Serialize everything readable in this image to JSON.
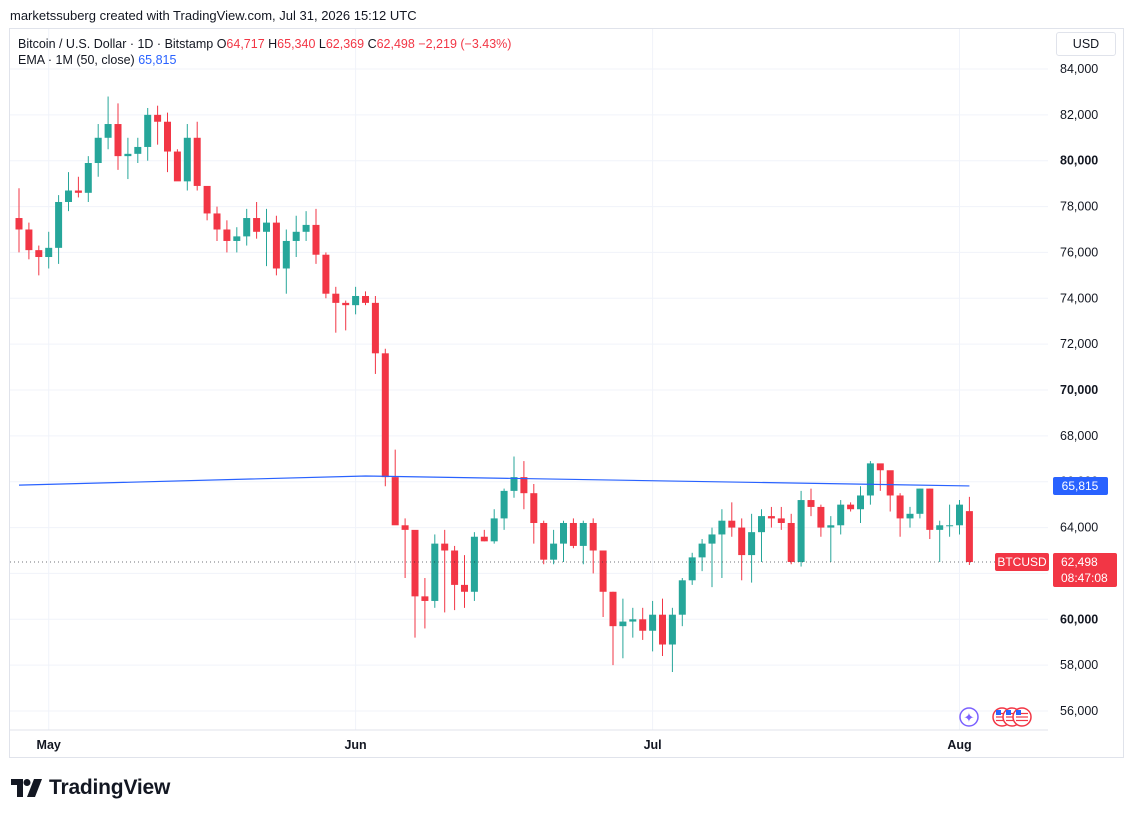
{
  "header": {
    "credit": "marketssuberg created with TradingView.com, Jul 31, 2026 15:12 UTC"
  },
  "legend": {
    "symbol": "Bitcoin / U.S. Dollar · 1D · Bitstamp",
    "o_label": "O",
    "o_value": "64,717",
    "h_label": "H",
    "h_value": "65,340",
    "l_label": "L",
    "l_value": "62,369",
    "c_label": "C",
    "c_value": "62,498",
    "change": "−2,219 (−3.43%)",
    "ema_label": "EMA · 1M (50, close)",
    "ema_value": "65,815"
  },
  "currency_button": "USD",
  "brand": {
    "name": "TradingView",
    "logo_icon": "tradingview-logo-icon"
  },
  "colors": {
    "up": "#26a69a",
    "down": "#f23645",
    "ema": "#2962ff",
    "grid": "#f0f3fa",
    "axis_text": "#131722"
  },
  "chart_data": {
    "type": "candlestick",
    "title": "Bitcoin / U.S. Dollar · 1D · Bitstamp",
    "ylim": [
      55000,
      85500
    ],
    "y_ticks": [
      "84,000",
      "82,000",
      "80,000",
      "78,000",
      "76,000",
      "74,000",
      "72,000",
      "70,000",
      "68,000",
      "66,000",
      "64,000",
      "62,000",
      "60,000",
      "58,000",
      "56,000"
    ],
    "y_tick_values": [
      84000,
      82000,
      80000,
      78000,
      76000,
      74000,
      72000,
      70000,
      68000,
      66000,
      64000,
      62000,
      60000,
      58000,
      56000
    ],
    "bold_ticks": [
      80000,
      70000,
      60000
    ],
    "x_tick_labels": [
      {
        "label": "May",
        "day": 3
      },
      {
        "label": "Jun",
        "day": 34
      },
      {
        "label": "Jul",
        "day": 64
      },
      {
        "label": "Aug",
        "day": 95
      }
    ],
    "candles_ohlc": [
      [
        77500,
        78800,
        76000,
        77000
      ],
      [
        77000,
        77300,
        75700,
        76100
      ],
      [
        76100,
        76300,
        75000,
        75800
      ],
      [
        75800,
        76900,
        75300,
        76200
      ],
      [
        76200,
        78500,
        75500,
        78200
      ],
      [
        78200,
        79500,
        77800,
        78700
      ],
      [
        78700,
        79300,
        78400,
        78600
      ],
      [
        78600,
        80200,
        78200,
        79900
      ],
      [
        79900,
        81600,
        79300,
        81000
      ],
      [
        81000,
        82800,
        80500,
        81600
      ],
      [
        81600,
        82500,
        79600,
        80200
      ],
      [
        80200,
        81000,
        79200,
        80300
      ],
      [
        80300,
        81000,
        79900,
        80600
      ],
      [
        80600,
        82300,
        80000,
        82000
      ],
      [
        82000,
        82400,
        80700,
        81700
      ],
      [
        81700,
        82100,
        79500,
        80400
      ],
      [
        80400,
        80500,
        79300,
        79100
      ],
      [
        79100,
        81600,
        78700,
        81000
      ],
      [
        81000,
        81700,
        78700,
        78900
      ],
      [
        78900,
        78800,
        77400,
        77700
      ],
      [
        77700,
        78000,
        76500,
        77000
      ],
      [
        77000,
        77400,
        76000,
        76500
      ],
      [
        76500,
        77100,
        76000,
        76700
      ],
      [
        76700,
        77900,
        76300,
        77500
      ],
      [
        77500,
        78200,
        76600,
        76900
      ],
      [
        76900,
        77900,
        75400,
        77300
      ],
      [
        77300,
        77600,
        75000,
        75300
      ],
      [
        75300,
        77000,
        74200,
        76500
      ],
      [
        76500,
        77600,
        75800,
        76900
      ],
      [
        76900,
        77800,
        76500,
        77200
      ],
      [
        77200,
        77900,
        75500,
        75900
      ],
      [
        75900,
        76000,
        74000,
        74200
      ],
      [
        74200,
        74500,
        72500,
        73800
      ],
      [
        73800,
        73900,
        72600,
        73700
      ],
      [
        73700,
        74500,
        73300,
        74100
      ],
      [
        74100,
        74300,
        73700,
        73800
      ],
      [
        73800,
        74100,
        70700,
        71600
      ],
      [
        71600,
        71800,
        65800,
        66200
      ],
      [
        66200,
        67400,
        65600,
        64100
      ],
      [
        64100,
        64400,
        61800,
        63900
      ],
      [
        63900,
        63800,
        59200,
        61000
      ],
      [
        61000,
        61800,
        59600,
        60800
      ],
      [
        60800,
        63700,
        60500,
        63300
      ],
      [
        63300,
        63900,
        60300,
        63000
      ],
      [
        63000,
        63200,
        60400,
        61500
      ],
      [
        61500,
        62800,
        60500,
        61200
      ],
      [
        61200,
        63800,
        60800,
        63600
      ],
      [
        63600,
        63900,
        63400,
        63400
      ],
      [
        63400,
        64800,
        63300,
        64400
      ],
      [
        64400,
        65700,
        63900,
        65600
      ],
      [
        65600,
        67100,
        65300,
        66200
      ],
      [
        66200,
        66900,
        64800,
        65500
      ],
      [
        65500,
        65900,
        63300,
        64200
      ],
      [
        64200,
        64300,
        62400,
        62600
      ],
      [
        62600,
        63900,
        62400,
        63300
      ],
      [
        63300,
        64300,
        62500,
        64200
      ],
      [
        64200,
        64400,
        63100,
        63200
      ],
      [
        63200,
        64300,
        62400,
        64200
      ],
      [
        64200,
        64400,
        62000,
        63000
      ],
      [
        63000,
        62800,
        60100,
        61200
      ],
      [
        61200,
        61200,
        58000,
        59700
      ],
      [
        59700,
        60900,
        58300,
        59900
      ],
      [
        59900,
        60500,
        59200,
        60000
      ],
      [
        60000,
        60500,
        59100,
        59500
      ],
      [
        59500,
        60800,
        58600,
        60200
      ],
      [
        60200,
        60900,
        58400,
        58900
      ],
      [
        58900,
        60500,
        57700,
        60200
      ],
      [
        60200,
        61800,
        59700,
        61700
      ],
      [
        61700,
        62900,
        61500,
        62700
      ],
      [
        62700,
        63500,
        62100,
        63300
      ],
      [
        63300,
        64000,
        61400,
        63700
      ],
      [
        63700,
        64800,
        61800,
        64300
      ],
      [
        64300,
        65100,
        63600,
        64000
      ],
      [
        64000,
        64400,
        61700,
        62800
      ],
      [
        62800,
        64600,
        61600,
        63800
      ],
      [
        63800,
        64800,
        62500,
        64500
      ],
      [
        64500,
        64900,
        64000,
        64400
      ],
      [
        64400,
        64900,
        63900,
        64200
      ],
      [
        64200,
        64600,
        62400,
        62500
      ],
      [
        62500,
        65600,
        62300,
        65200
      ],
      [
        65200,
        65700,
        64500,
        64900
      ],
      [
        64900,
        65000,
        63600,
        64000
      ],
      [
        64000,
        64500,
        62500,
        64100
      ],
      [
        64100,
        65200,
        63700,
        65000
      ],
      [
        65000,
        65100,
        64700,
        64800
      ],
      [
        64800,
        65800,
        64200,
        65400
      ],
      [
        65400,
        66900,
        65000,
        66800
      ],
      [
        66800,
        66600,
        65600,
        66500
      ],
      [
        66500,
        65900,
        64700,
        65400
      ],
      [
        65400,
        65500,
        63600,
        64400
      ],
      [
        64400,
        64900,
        64000,
        64600
      ],
      [
        64600,
        65700,
        64400,
        65700
      ],
      [
        65700,
        65700,
        63500,
        63900
      ],
      [
        63900,
        64300,
        62500,
        64100
      ],
      [
        64100,
        65000,
        63600,
        64100
      ],
      [
        64100,
        65200,
        63700,
        65000
      ],
      [
        64717,
        65340,
        62369,
        62498
      ]
    ],
    "ema_series": [
      {
        "name": "EMA · 1M (50, close)",
        "points": [
          {
            "day": 0,
            "value": 65850
          },
          {
            "day": 35,
            "value": 66250
          },
          {
            "day": 96,
            "value": 65815
          }
        ]
      }
    ],
    "last_price": {
      "symbol": "BTCUSD",
      "value": "62,498",
      "countdown": "08:47:08"
    },
    "ema_last": "65,815",
    "grid": true
  }
}
